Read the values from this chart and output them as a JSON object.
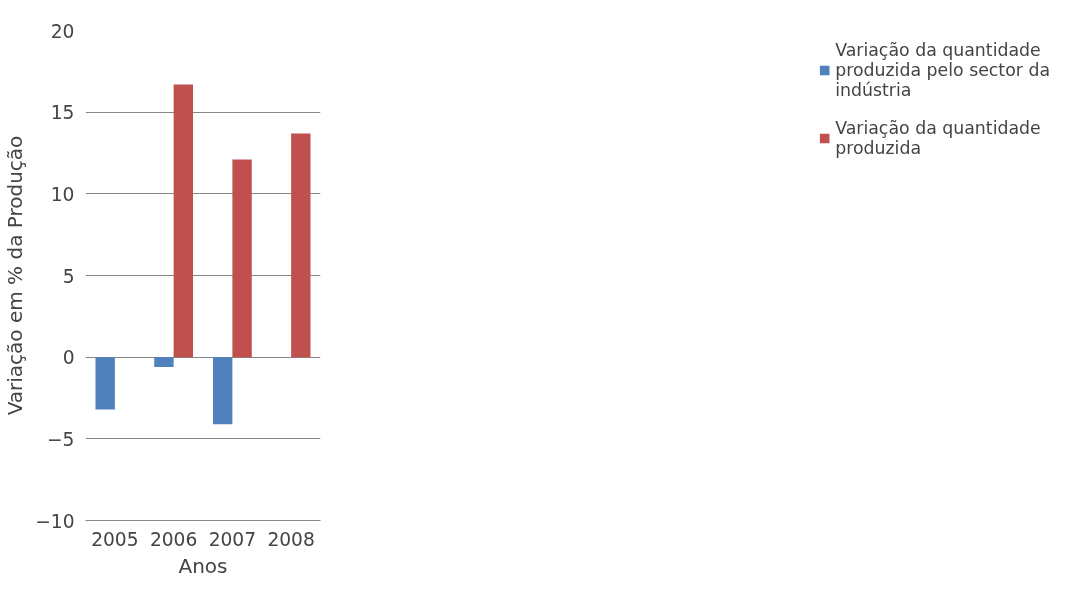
{
  "chart_data": {
    "type": "bar",
    "xlabel": "Anos",
    "ylabel": "Variação em % da Produção",
    "categories": [
      "2005",
      "2006",
      "2007",
      "2008"
    ],
    "series": [
      {
        "name": "Variação da quantidade produzida pelo sector da indústria",
        "color": "#4f81bd",
        "values": [
          -3.2,
          -0.6,
          -4.1,
          null
        ]
      },
      {
        "name": "Variação da quantidade produzida",
        "color": "#c0504d",
        "values": [
          null,
          16.7,
          12.1,
          13.7
        ]
      }
    ],
    "ylim": [
      -10,
      20
    ],
    "yticks": [
      -10,
      -5,
      0,
      5,
      10,
      15,
      20
    ],
    "grid": "y",
    "legend": "right"
  }
}
